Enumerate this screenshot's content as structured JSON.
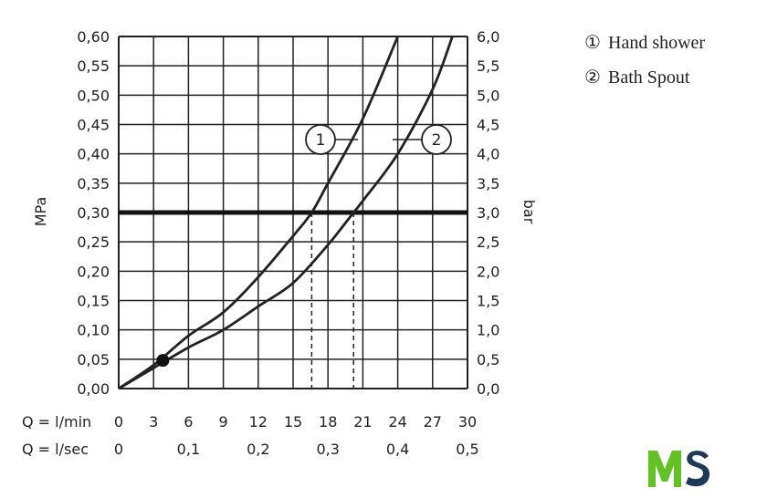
{
  "chart_data": {
    "type": "line",
    "ylabel_left": "MPa",
    "ylabel_right": "bar",
    "ylim_left": [
      0,
      0.6
    ],
    "ylim_right": [
      0,
      6
    ],
    "xlim": [
      0,
      30
    ],
    "grid": true,
    "x_labels_lmin_prefix": "Q = l/min",
    "x_labels_lsec_prefix": "Q = l/sec",
    "x_ticks_lmin": [
      "0",
      "3",
      "6",
      "9",
      "12",
      "15",
      "18",
      "21",
      "24",
      "27",
      "30"
    ],
    "x_ticks_lsec": [
      {
        "label": "0",
        "value": 0
      },
      {
        "label": "0,1",
        "value": 6
      },
      {
        "label": "0,2",
        "value": 12
      },
      {
        "label": "0,3",
        "value": 18
      },
      {
        "label": "0,4",
        "value": 24
      },
      {
        "label": "0,5",
        "value": 30
      }
    ],
    "y_ticks_left": [
      "0,00",
      "0,05",
      "0,10",
      "0,15",
      "0,20",
      "0,25",
      "0,30",
      "0,35",
      "0,40",
      "0,45",
      "0,50",
      "0,55",
      "0,60"
    ],
    "y_ticks_right": [
      "0,0",
      "0,5",
      "1,0",
      "1,5",
      "2,0",
      "2,5",
      "3,0",
      "3,5",
      "4,0",
      "4,5",
      "5,0",
      "5,5",
      "6,0"
    ],
    "series": [
      {
        "name": "Hand shower",
        "marker": "1",
        "x": [
          0,
          3,
          6,
          9,
          12,
          15,
          16.6,
          18,
          21,
          24
        ],
        "y": [
          0,
          0.04,
          0.09,
          0.13,
          0.19,
          0.26,
          0.3,
          0.35,
          0.46,
          0.6
        ]
      },
      {
        "name": "Bath Spout",
        "marker": "2",
        "x": [
          0,
          3,
          6,
          9,
          12,
          15,
          18,
          20.2,
          21,
          24,
          27,
          28.7
        ],
        "y": [
          0,
          0.035,
          0.07,
          0.1,
          0.14,
          0.18,
          0.245,
          0.3,
          0.32,
          0.4,
          0.51,
          0.6
        ]
      }
    ],
    "reference_line": {
      "y": 0.3,
      "style": "bold"
    },
    "dashed_drops": [
      16.6,
      20.2
    ],
    "point": {
      "x": 3.8,
      "y": 0.048
    }
  },
  "legend": {
    "items": [
      {
        "symbol": "①",
        "label": "Hand shower"
      },
      {
        "symbol": "②",
        "label": "Bath Spout"
      }
    ]
  },
  "logo": {
    "letters": "MS",
    "colors": [
      "#63c126",
      "#1f3a57"
    ]
  }
}
